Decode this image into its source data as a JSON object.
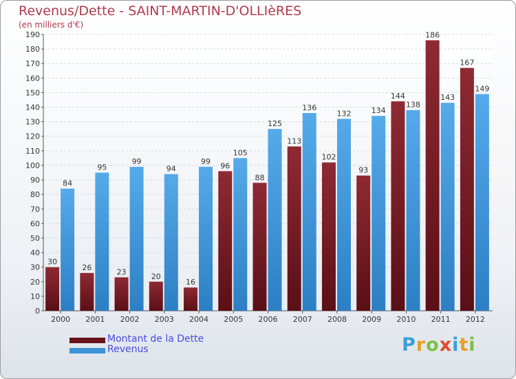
{
  "title": "Revenus/Dette - SAINT-MARTIN-D'OLLIèRES",
  "subtitle": "(en milliers d'€)",
  "legend": {
    "debt_label": "Montant de la Dette",
    "revenue_label": "Revenus",
    "position": "bottom-left"
  },
  "colors": {
    "debt": "#7a1e26",
    "revenue": "#3c93d8",
    "title": "#b13a4d",
    "legend_text": "#4a4ae0"
  },
  "logo": {
    "text": "Proxiti"
  },
  "chart_data": {
    "type": "bar",
    "title": "Revenus/Dette - SAINT-MARTIN-D'OLLIèRES",
    "subtitle": "(en milliers d'€)",
    "xlabel": "",
    "ylabel": "",
    "categories": [
      "2000",
      "2001",
      "2002",
      "2003",
      "2004",
      "2005",
      "2006",
      "2007",
      "2008",
      "2009",
      "2010",
      "2011",
      "2012"
    ],
    "series": [
      {
        "name": "Montant de la Dette",
        "values": [
          30,
          26,
          23,
          20,
          16,
          96,
          88,
          113,
          102,
          93,
          144,
          186,
          167
        ]
      },
      {
        "name": "Revenus",
        "values": [
          84,
          95,
          99,
          94,
          99,
          105,
          125,
          136,
          132,
          134,
          138,
          143,
          149
        ]
      }
    ],
    "ylim": [
      0,
      190
    ],
    "yticks": [
      0,
      10,
      20,
      30,
      40,
      50,
      60,
      70,
      80,
      90,
      100,
      110,
      120,
      130,
      140,
      150,
      160,
      170,
      180,
      190
    ],
    "grid": true,
    "legend_position": "bottom-left"
  }
}
